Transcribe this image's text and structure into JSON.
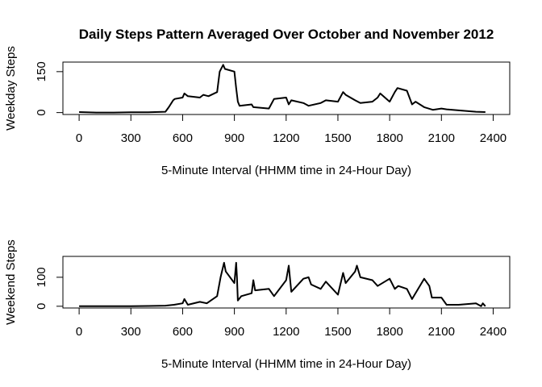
{
  "chart_data": [
    {
      "type": "line",
      "title": "Daily Steps Pattern Averaged Over October and November 2012",
      "x_label": "5-Minute Interval (HHMM time in 24-Hour Day)",
      "y_label": "Weekday Steps",
      "x": [
        0,
        100,
        200,
        300,
        400,
        500,
        520,
        545,
        555,
        600,
        610,
        630,
        700,
        720,
        750,
        800,
        815,
        835,
        845,
        900,
        910,
        920,
        930,
        1000,
        1010,
        1100,
        1130,
        1200,
        1215,
        1230,
        1300,
        1330,
        1400,
        1430,
        1500,
        1530,
        1545,
        1600,
        1630,
        1700,
        1730,
        1745,
        1800,
        1830,
        1845,
        1900,
        1930,
        1950,
        2000,
        2050,
        2100,
        2130,
        2200,
        2300,
        2355
      ],
      "values": [
        2,
        0,
        0,
        1,
        1,
        3,
        20,
        45,
        50,
        55,
        70,
        60,
        55,
        65,
        60,
        75,
        150,
        175,
        160,
        150,
        90,
        40,
        25,
        30,
        20,
        15,
        50,
        55,
        30,
        45,
        35,
        25,
        35,
        45,
        40,
        75,
        65,
        45,
        35,
        40,
        55,
        70,
        40,
        75,
        90,
        80,
        30,
        40,
        20,
        10,
        15,
        12,
        8,
        3,
        2
      ],
      "color": "#000000",
      "xlim": [
        -94,
        2496
      ],
      "ylim": [
        -7,
        185
      ],
      "xticks": [
        0,
        300,
        600,
        900,
        1200,
        1500,
        1800,
        2100,
        2400
      ],
      "yticks": [
        0,
        150
      ]
    },
    {
      "type": "line",
      "x_label": "5-Minute Interval (HHMM time in 24-Hour Day)",
      "y_label": "Weekend Steps",
      "x": [
        0,
        100,
        200,
        300,
        400,
        500,
        550,
        600,
        610,
        630,
        700,
        740,
        800,
        820,
        840,
        850,
        900,
        910,
        915,
        920,
        940,
        1000,
        1010,
        1020,
        1100,
        1130,
        1200,
        1215,
        1230,
        1300,
        1330,
        1345,
        1400,
        1430,
        1500,
        1530,
        1545,
        1600,
        1610,
        1630,
        1700,
        1730,
        1800,
        1830,
        1850,
        1900,
        1930,
        2000,
        2030,
        2045,
        2100,
        2130,
        2200,
        2300,
        2330,
        2340,
        2355
      ],
      "values": [
        0,
        0,
        0,
        0,
        1,
        2,
        5,
        10,
        25,
        5,
        15,
        10,
        35,
        100,
        150,
        120,
        80,
        150,
        100,
        20,
        35,
        45,
        90,
        55,
        60,
        35,
        90,
        140,
        50,
        95,
        100,
        75,
        60,
        85,
        40,
        115,
        80,
        120,
        140,
        100,
        90,
        70,
        95,
        60,
        70,
        60,
        25,
        95,
        70,
        30,
        30,
        5,
        5,
        10,
        0,
        10,
        0
      ],
      "color": "#000000",
      "xlim": [
        -94,
        2496
      ],
      "ylim": [
        -6,
        172
      ],
      "xticks": [
        0,
        300,
        600,
        900,
        1200,
        1500,
        1800,
        2100,
        2400
      ],
      "yticks": [
        0,
        100
      ]
    }
  ]
}
